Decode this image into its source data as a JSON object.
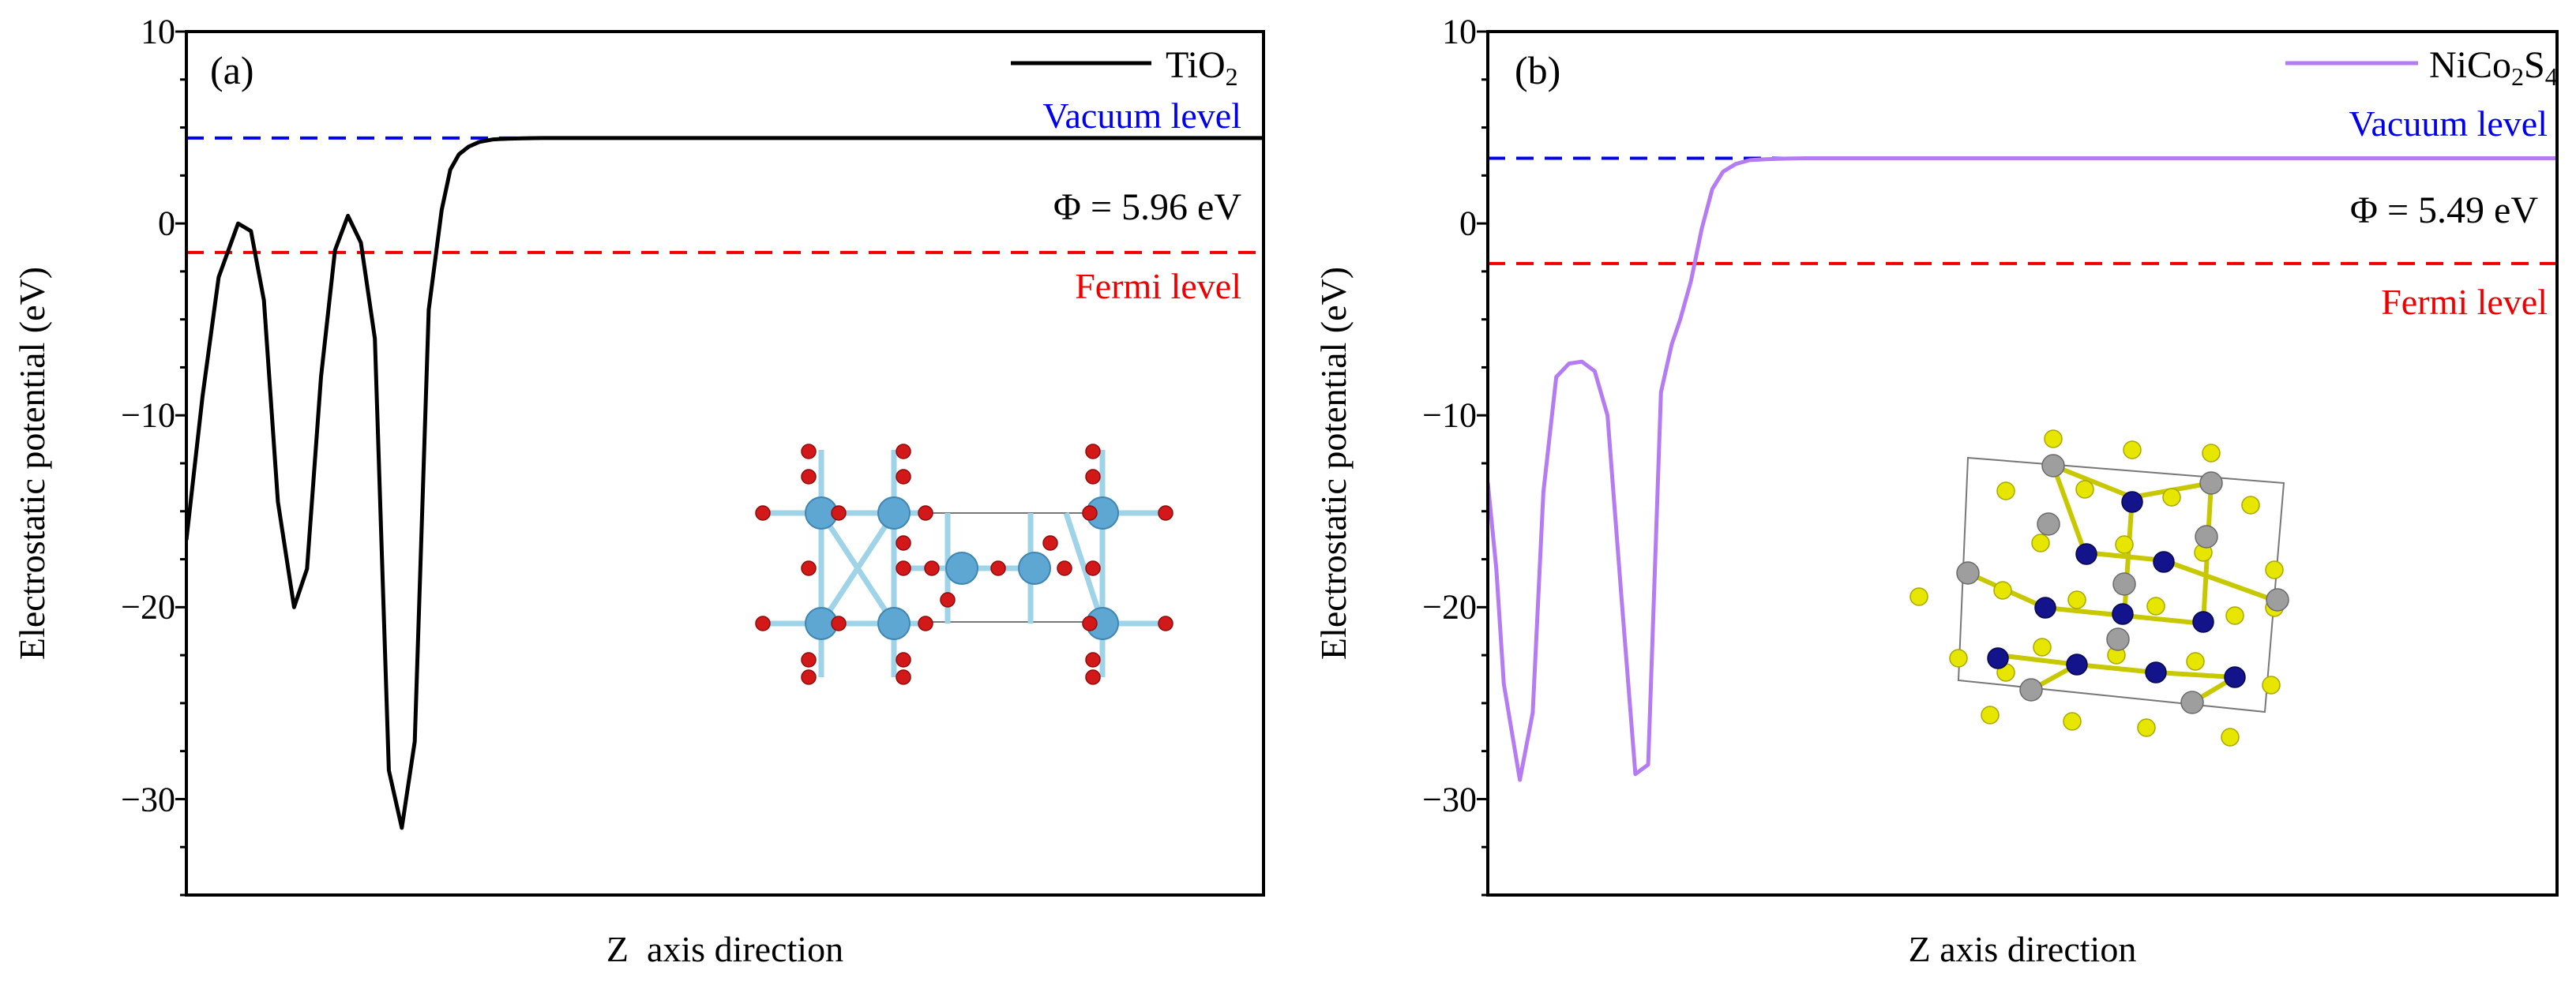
{
  "chart_data": [
    {
      "type": "line",
      "panel_label": "(a)",
      "xlabel": "Z  axis direction",
      "ylabel": "Electrostatic potential (eV)",
      "ylim": [
        -35,
        10
      ],
      "yticks": [
        10,
        0,
        -10,
        -20,
        -30
      ],
      "ytick_labels": [
        "10",
        "0",
        "−10",
        "−20",
        "−30"
      ],
      "xlim": [
        0,
        1
      ],
      "legend": {
        "label": "TiO",
        "sub": "2",
        "position": "top-right"
      },
      "series": [
        {
          "name": "TiO2",
          "color": "#000000",
          "x": [
            0.0,
            0.015,
            0.03,
            0.048,
            0.06,
            0.072,
            0.085,
            0.1,
            0.112,
            0.125,
            0.138,
            0.15,
            0.162,
            0.175,
            0.188,
            0.2,
            0.212,
            0.225,
            0.237,
            0.245,
            0.253,
            0.262,
            0.272,
            0.285,
            0.298,
            0.312,
            0.33,
            0.35,
            0.38,
            0.42,
            1.0
          ],
          "y": [
            -16.5,
            -9.0,
            -2.8,
            0.0,
            -0.4,
            -4.0,
            -14.5,
            -20.0,
            -18.0,
            -8.0,
            -1.4,
            0.4,
            -1.0,
            -6.0,
            -28.5,
            -31.5,
            -27.0,
            -4.5,
            0.7,
            2.8,
            3.6,
            4.0,
            4.25,
            4.38,
            4.42,
            4.44,
            4.45,
            4.45,
            4.45,
            4.45,
            4.45
          ]
        }
      ],
      "reference_lines": [
        {
          "name": "vacuum",
          "value": 4.45,
          "color": "#0000ee",
          "label": "Vacuum level"
        },
        {
          "name": "fermi",
          "value": -1.51,
          "color": "#ee0000",
          "label": "Fermi level"
        }
      ],
      "annotation": "Φ = 5.96 eV",
      "colors": {
        "bond": "#9fd3e8",
        "atom_big": "#5da7d2",
        "atom_small": "#d21818"
      }
    },
    {
      "type": "line",
      "panel_label": "(b)",
      "xlabel": "Z axis direction",
      "ylabel": "Electrostatic potential (eV)",
      "ylim": [
        -35,
        10
      ],
      "yticks": [
        10,
        0,
        -10,
        -20,
        -30
      ],
      "ytick_labels": [
        "10",
        "0",
        "−10",
        "−20",
        "−30"
      ],
      "xlim": [
        0,
        1
      ],
      "legend": {
        "label": "NiCo",
        "sub1": "2",
        "mid": "S",
        "sub2": "4",
        "position": "top-right"
      },
      "series": [
        {
          "name": "NiCo2S4",
          "color": "#b57bf2",
          "x": [
            0.0,
            0.008,
            0.015,
            0.03,
            0.042,
            0.052,
            0.064,
            0.076,
            0.088,
            0.1,
            0.112,
            0.125,
            0.138,
            0.15,
            0.162,
            0.172,
            0.18,
            0.19,
            0.2,
            0.21,
            0.22,
            0.232,
            0.245,
            0.26,
            0.28,
            0.3,
            0.35,
            0.4,
            1.0
          ],
          "y": [
            -13.5,
            -18.0,
            -24.0,
            -29.0,
            -25.5,
            -14.0,
            -8.0,
            -7.3,
            -7.2,
            -7.7,
            -10.0,
            -19.5,
            -28.7,
            -28.2,
            -8.8,
            -6.3,
            -5.0,
            -3.0,
            -0.3,
            1.8,
            2.7,
            3.1,
            3.3,
            3.35,
            3.38,
            3.4,
            3.4,
            3.4,
            3.4
          ]
        }
      ],
      "reference_lines": [
        {
          "name": "vacuum",
          "value": 3.4,
          "color": "#0000ee",
          "label": "Vacuum level"
        },
        {
          "name": "fermi",
          "value": -2.09,
          "color": "#ee0000",
          "label": "Fermi level"
        }
      ],
      "annotation": "Φ = 5.49 eV",
      "colors": {
        "atom_s": "#e6e600",
        "atom_co": "#13138c",
        "atom_ni": "#9e9e9e",
        "bond": "#c8c800"
      }
    }
  ]
}
